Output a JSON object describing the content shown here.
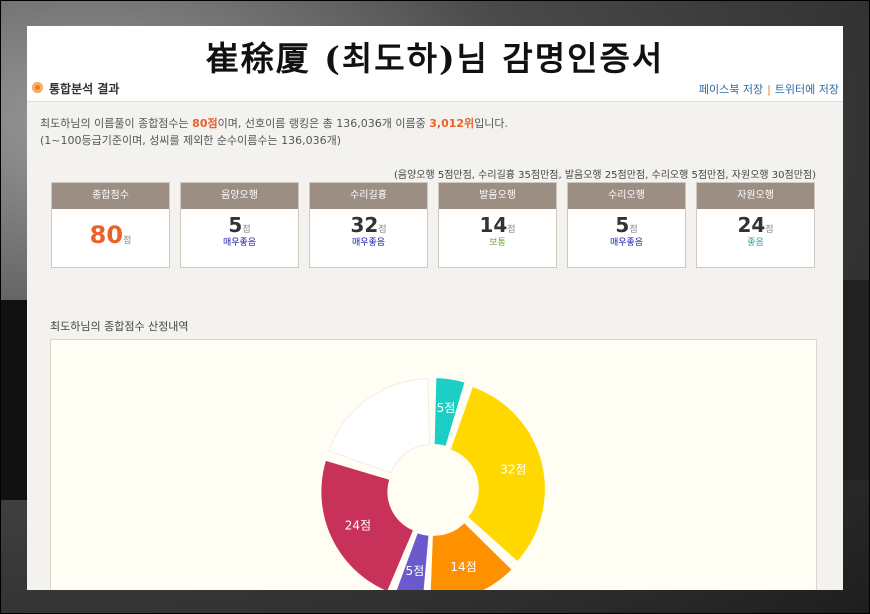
{
  "title": "崔稌厦 (최도하)님 감명인증서",
  "section": {
    "title": "통합분석 결과",
    "facebook": "페이스북 저장",
    "separator": "|",
    "twitter": "트위터에 저장"
  },
  "summary": {
    "p1": "최도하님의 이름풀이 종합점수는 ",
    "score": "80점",
    "p2": "이며, 선호이름 랭킹은 총 136,036개 이름중 ",
    "rank": "3,012위",
    "p3": "입니다.",
    "line2": "(1~100등급기준이며, 성씨를 제외한 순수이름수는 136,036개)"
  },
  "max_note": "(음양오행 5점만점, 수리길흉 35점만점, 발음오행 25점만점, 수리오행 5점만점, 자원오행 30점만점)",
  "cards": [
    {
      "label": "종합점수",
      "value": "80",
      "unit": "점",
      "grade": "",
      "grade_color": ""
    },
    {
      "label": "음양오행",
      "value": "5",
      "unit": "점",
      "grade": "매우좋음",
      "grade_color": "#1a1aa8"
    },
    {
      "label": "수리길흉",
      "value": "32",
      "unit": "점",
      "grade": "매우좋음",
      "grade_color": "#1a1aa8"
    },
    {
      "label": "발음오행",
      "value": "14",
      "unit": "점",
      "grade": "보통",
      "grade_color": "#6aa83a"
    },
    {
      "label": "수리오행",
      "value": "5",
      "unit": "점",
      "grade": "매우좋음",
      "grade_color": "#1a1aa8"
    },
    {
      "label": "자원오행",
      "value": "24",
      "unit": "점",
      "grade": "좋음",
      "grade_color": "#1aa8a0"
    }
  ],
  "chart_label": "최도하님의 종합점수 산정내역",
  "chart_data": {
    "type": "pie",
    "total": 100,
    "slices": [
      {
        "value": 5,
        "label": "5점",
        "color": "#1ccfc4"
      },
      {
        "value": 32,
        "label": "32점",
        "color": "#ffd800"
      },
      {
        "value": 14,
        "label": "14점",
        "color": "#ff9000"
      },
      {
        "value": 5,
        "label": "5점",
        "color": "#6a5acd"
      },
      {
        "value": 24,
        "label": "24점",
        "color": "#c8325a"
      },
      {
        "value": 20,
        "label": "",
        "color": "#ffffff"
      }
    ]
  }
}
